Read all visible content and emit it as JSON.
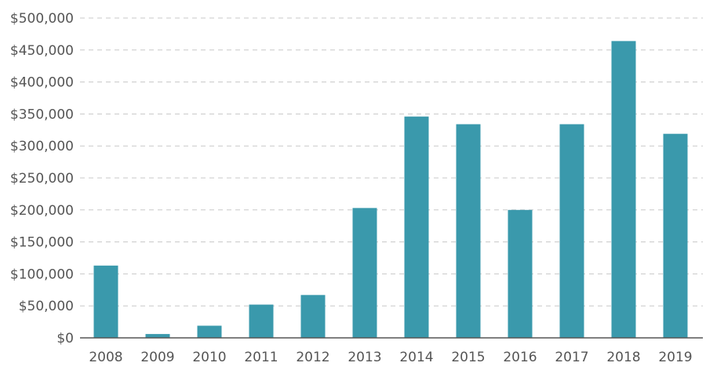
{
  "chart_data": {
    "type": "bar",
    "title": "",
    "xlabel": "",
    "ylabel": "",
    "categories": [
      "2008",
      "2009",
      "2010",
      "2011",
      "2012",
      "2013",
      "2014",
      "2015",
      "2016",
      "2017",
      "2018",
      "2019"
    ],
    "values": [
      113000,
      6000,
      19000,
      52000,
      67000,
      203000,
      346000,
      334000,
      200000,
      334000,
      464000,
      319000
    ],
    "ylim": [
      0,
      500000
    ],
    "yticks": [
      0,
      50000,
      100000,
      150000,
      200000,
      250000,
      300000,
      350000,
      400000,
      450000,
      500000
    ],
    "ytick_labels": [
      "$0",
      "$50,000",
      "$100,000",
      "$150,000",
      "$200,000",
      "$250,000",
      "$300,000",
      "$350,000",
      "$400,000",
      "$450,000",
      "$500,000"
    ],
    "grid": "horizontal dashed",
    "legend": "none",
    "colors": {
      "bar": "#3a99ac",
      "grid": "#c8c8c8",
      "axis": "#555555",
      "text": "#555555"
    }
  }
}
